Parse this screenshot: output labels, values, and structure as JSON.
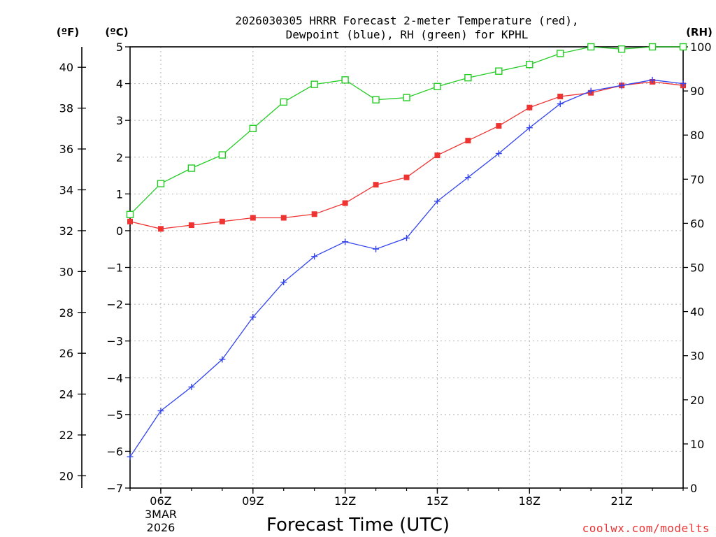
{
  "chart_data": {
    "type": "line",
    "title_line1": "2026030305 HRRR Forecast 2-meter Temperature (red),",
    "title_line2": "Dewpoint (blue), RH (green) for KPHL",
    "xlabel": "Forecast Time (UTC)",
    "credit": "coolwx.com/modelts",
    "unit_f": "(ºF)",
    "unit_c": "(ºC)",
    "unit_rh": "(RH)",
    "x_hours": [
      5,
      6,
      7,
      8,
      9,
      10,
      11,
      12,
      13,
      14,
      15,
      16,
      17,
      18,
      19,
      20,
      21,
      22,
      23
    ],
    "xlim": [
      5,
      23
    ],
    "x_ticks": [
      {
        "hour": 6,
        "label": "06Z"
      },
      {
        "hour": 9,
        "label": "09Z"
      },
      {
        "hour": 12,
        "label": "12Z"
      },
      {
        "hour": 15,
        "label": "15Z"
      },
      {
        "hour": 18,
        "label": "18Z"
      },
      {
        "hour": 21,
        "label": "21Z"
      }
    ],
    "date_label": [
      "3MAR",
      "2026"
    ],
    "ylim_c": [
      -7,
      5
    ],
    "y_ticks_c": [
      "5",
      "4",
      "3",
      "2",
      "1",
      "0",
      "−1",
      "−2",
      "−3",
      "−4",
      "−5",
      "−6",
      "−7"
    ],
    "y_ticks_f": [
      "40",
      "38",
      "36",
      "34",
      "32",
      "30",
      "28",
      "26",
      "24",
      "22",
      "20"
    ],
    "ylim_rh": [
      0,
      100
    ],
    "y_ticks_rh": [
      "100",
      "90",
      "80",
      "70",
      "60",
      "50",
      "40",
      "30",
      "20",
      "10",
      "0"
    ],
    "grid": true,
    "series": [
      {
        "name": "Temperature",
        "unit": "C",
        "color": "#ee3333",
        "marker": "filled-square",
        "values": [
          0.25,
          0.05,
          0.15,
          0.25,
          0.35,
          0.35,
          0.45,
          0.75,
          1.25,
          1.45,
          2.05,
          2.45,
          2.85,
          3.35,
          3.65,
          3.75,
          3.95,
          4.05,
          3.95
        ]
      },
      {
        "name": "Dewpoint",
        "unit": "C",
        "color": "#3344ee",
        "marker": "plus",
        "values": [
          -6.15,
          -4.9,
          -4.25,
          -3.5,
          -2.35,
          -1.4,
          -0.7,
          -0.3,
          -0.5,
          -0.2,
          0.8,
          1.45,
          2.1,
          2.8,
          3.45,
          3.8,
          3.95,
          4.1,
          4.0
        ]
      },
      {
        "name": "RH",
        "unit": "%",
        "color": "#22cc22",
        "marker": "open-square",
        "values": [
          62,
          69,
          72.5,
          75.5,
          81.5,
          87.5,
          91.5,
          92.5,
          88,
          88.5,
          91,
          93,
          94.5,
          96,
          98.5,
          100,
          99.5,
          100,
          100
        ]
      }
    ]
  }
}
